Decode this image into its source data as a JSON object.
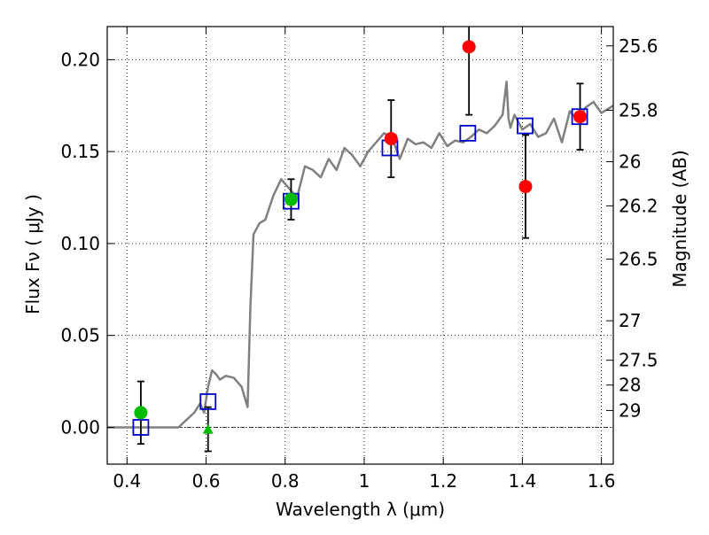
{
  "chart_data": {
    "type": "scatter",
    "xlabel": "Wavelength  λ (μm)",
    "ylabel": "Flux  Fν  ( μJy )",
    "ylabel_right": "Magnitude (AB)",
    "xlim": [
      0.35,
      1.63
    ],
    "ylim": [
      -0.02,
      0.218
    ],
    "x_ticks": [
      0.4,
      0.6,
      0.8,
      1.0,
      1.2,
      1.4,
      1.6
    ],
    "x_tick_labels": [
      "0.4",
      "0.6",
      "0.8",
      "1",
      "1.2",
      "1.4",
      "1.6"
    ],
    "y_ticks": [
      0.0,
      0.05,
      0.1,
      0.15,
      0.2
    ],
    "y_tick_labels": [
      "0.00",
      "0.05",
      "0.10",
      "0.15",
      "0.20"
    ],
    "right_axis_labels": [
      "25.6",
      "25.8",
      "26",
      "26.2",
      "26.5",
      "27",
      "27.5",
      "28",
      "29"
    ],
    "right_axis_flux": [
      0.2075,
      0.1725,
      0.1445,
      0.1205,
      0.0915,
      0.058,
      0.0365,
      0.023,
      0.0092
    ],
    "grid": true,
    "reference_line_y": 0.0,
    "colors": {
      "spectrum": "#808080",
      "model_box": "#0000cc",
      "obs_red": "#ff0000",
      "obs_green": "#00bb00",
      "errorbar": "#000000"
    },
    "series": [
      {
        "marker": "line",
        "x": [
          0.35,
          0.45,
          0.5,
          0.53,
          0.55,
          0.57,
          0.585,
          0.595,
          0.605,
          0.615,
          0.625,
          0.635,
          0.65,
          0.67,
          0.69,
          0.705,
          0.712,
          0.72,
          0.735,
          0.75,
          0.77,
          0.79,
          0.81,
          0.83,
          0.85,
          0.87,
          0.89,
          0.91,
          0.93,
          0.95,
          0.97,
          0.99,
          1.01,
          1.03,
          1.05,
          1.07,
          1.09,
          1.11,
          1.13,
          1.15,
          1.17,
          1.19,
          1.21,
          1.23,
          1.25,
          1.27,
          1.29,
          1.31,
          1.33,
          1.35,
          1.36,
          1.365,
          1.37,
          1.38,
          1.4,
          1.42,
          1.44,
          1.46,
          1.48,
          1.5,
          1.52,
          1.54,
          1.56,
          1.58,
          1.6,
          1.63
        ],
        "y": [
          0.0,
          0.0,
          0.0,
          0.0,
          0.004,
          0.008,
          0.013,
          0.008,
          0.022,
          0.031,
          0.029,
          0.026,
          0.028,
          0.027,
          0.022,
          0.011,
          0.065,
          0.105,
          0.111,
          0.113,
          0.126,
          0.135,
          0.13,
          0.125,
          0.142,
          0.14,
          0.136,
          0.146,
          0.14,
          0.152,
          0.148,
          0.142,
          0.15,
          0.155,
          0.16,
          0.158,
          0.146,
          0.157,
          0.154,
          0.155,
          0.152,
          0.16,
          0.153,
          0.156,
          0.155,
          0.158,
          0.162,
          0.16,
          0.164,
          0.17,
          0.188,
          0.168,
          0.163,
          0.17,
          0.162,
          0.165,
          0.158,
          0.16,
          0.168,
          0.155,
          0.172,
          0.167,
          0.174,
          0.177,
          0.171,
          0.175
        ]
      },
      {
        "marker": "open-square",
        "x": [
          0.435,
          0.605,
          0.815,
          1.065,
          1.262,
          1.407,
          1.545
        ],
        "y": [
          0.0,
          0.014,
          0.123,
          0.152,
          0.16,
          0.164,
          0.169
        ]
      },
      {
        "marker": "filled-circle-red",
        "x": [
          1.068,
          1.265,
          1.408,
          1.546
        ],
        "y": [
          0.157,
          0.207,
          0.131,
          0.169
        ],
        "err": [
          0.021,
          0.037,
          0.028,
          0.018
        ]
      },
      {
        "marker": "filled-circle-green",
        "x": [
          0.435,
          0.815
        ],
        "y": [
          0.008,
          0.124
        ],
        "err": [
          0.017,
          0.011
        ]
      },
      {
        "marker": "triangle-green",
        "x": [
          0.605
        ],
        "y": [
          -0.001
        ],
        "err": [
          0.012
        ]
      }
    ]
  }
}
